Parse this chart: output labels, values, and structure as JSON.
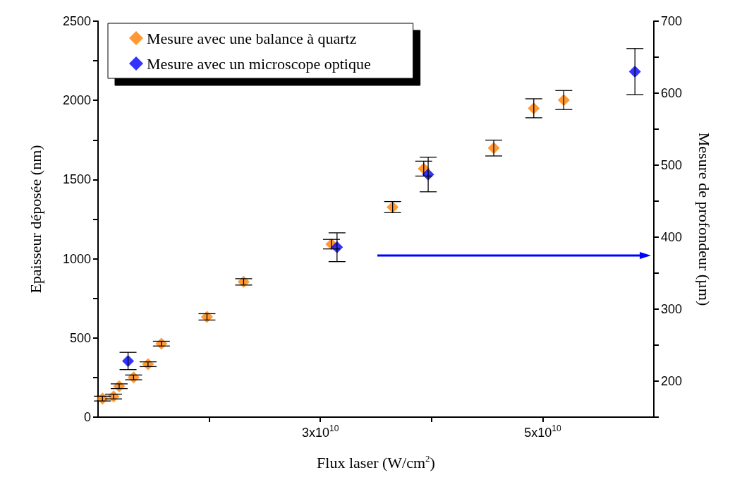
{
  "chart_data": {
    "type": "scatter",
    "xlabel": "Flux laser (W/cm$^{2}$)",
    "ylabel": "Epaisseur déposée (nm)",
    "y2label": "Mesure de profondeur (µm)",
    "xlim": [
      10000000000.0,
      60000000000.0
    ],
    "xticks": [
      {
        "value": 20000000000.0,
        "label": null
      },
      {
        "value": 30000000000.0,
        "label": "3x10$^{10}$"
      },
      {
        "value": 40000000000.0,
        "label": null
      },
      {
        "value": 50000000000.0,
        "label": "5x10$^{10}$"
      }
    ],
    "ylim": [
      0,
      2500
    ],
    "yticks": [
      0,
      {
        "value": 250,
        "label": null
      },
      500,
      {
        "value": 750,
        "label": null
      },
      1000,
      {
        "value": 1250,
        "label": null
      },
      1500,
      {
        "value": 1750,
        "label": null
      },
      2000,
      {
        "value": 2250,
        "label": null
      },
      2500
    ],
    "y2lim": [
      150,
      700
    ],
    "y2ticks": [
      {
        "value": 150,
        "label": null
      },
      200,
      {
        "value": 250,
        "label": null
      },
      300,
      {
        "value": 350,
        "label": null
      },
      400,
      {
        "value": 450,
        "label": null
      },
      500,
      {
        "value": 550,
        "label": null
      },
      600,
      {
        "value": 650,
        "label": null
      },
      700
    ],
    "marker": "diamond",
    "grid": false,
    "legend": "top left",
    "series": [
      {
        "name": "Mesure avec une balance à quartz",
        "color": "#ff8000",
        "x": [
          10400000000.0,
          11400000000.0,
          11900000000.0,
          13200000000.0,
          14500000000.0,
          15700000000.0,
          19800000000.0,
          23100000000.0,
          31000000000.0,
          36500000000.0,
          39300000000.0,
          45600000000.0,
          49200000000.0,
          51900000000.0
        ],
        "values": [
          117,
          130,
          195,
          251,
          334,
          464,
          633,
          854,
          1092,
          1326,
          1569,
          1699,
          1950,
          2002
        ],
        "errors": [
          15,
          15,
          15,
          15,
          15,
          15,
          20,
          20,
          30,
          35,
          47,
          50,
          60,
          60
        ]
      },
      {
        "name": "Mesure avec un microscope optique",
        "color": "#0000ff",
        "axis": "y2",
        "x": [
          12700000000.0,
          31500000000.0,
          39700000000.0,
          58300000000.0
        ],
        "values": [
          228,
          386,
          487,
          630
        ],
        "errors": [
          12,
          20,
          24,
          32
        ]
      }
    ]
  }
}
